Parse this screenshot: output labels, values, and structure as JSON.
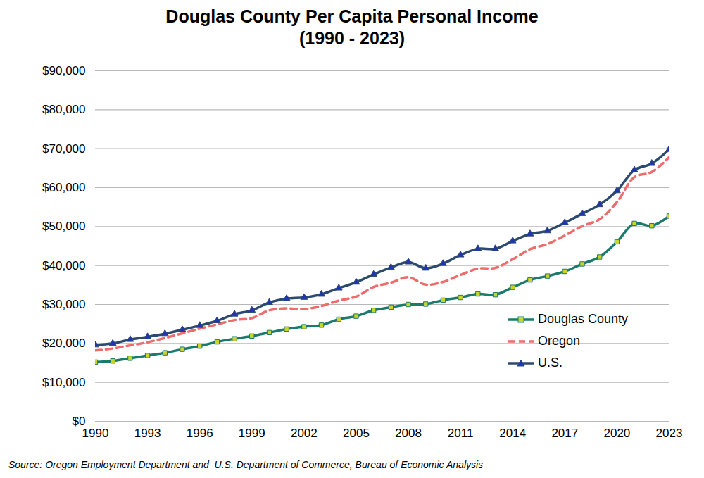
{
  "chart_data": {
    "type": "line",
    "title": "Douglas County Per Capita Personal Income",
    "subtitle": "(1990 - 2023)",
    "source": "Source: Oregon Employment Department and  U.S. Department of Commerce, Bureau of Economic Analysis",
    "x": [
      1990,
      1991,
      1992,
      1993,
      1994,
      1995,
      1996,
      1997,
      1998,
      1999,
      2000,
      2001,
      2002,
      2003,
      2004,
      2005,
      2006,
      2007,
      2008,
      2009,
      2010,
      2011,
      2012,
      2013,
      2014,
      2015,
      2016,
      2017,
      2018,
      2019,
      2020,
      2021,
      2022,
      2023
    ],
    "series": [
      {
        "name": "Douglas County",
        "color": "#1b7a6c",
        "marker": "square",
        "line_style": "solid",
        "values": [
          15200,
          15500,
          16200,
          16900,
          17600,
          18500,
          19300,
          20400,
          21200,
          21900,
          22800,
          23700,
          24300,
          24700,
          26200,
          27000,
          28500,
          29300,
          30000,
          30100,
          31100,
          31800,
          32700,
          32500,
          34400,
          36300,
          37300,
          38500,
          40400,
          42200,
          46100,
          50800,
          50200,
          52700
        ]
      },
      {
        "name": "Oregon",
        "color": "#f06b6b",
        "marker": "none",
        "line_style": "dashed",
        "values": [
          18200,
          18700,
          19500,
          20300,
          21400,
          22600,
          23800,
          24900,
          26000,
          26500,
          28500,
          29000,
          28800,
          29600,
          31000,
          32000,
          34500,
          35600,
          37000,
          35100,
          35800,
          37600,
          39200,
          39400,
          41600,
          44200,
          45500,
          47700,
          50100,
          51900,
          56300,
          62700,
          64000,
          67800
        ]
      },
      {
        "name": "U.S.",
        "color": "#2c4a6e",
        "marker": "triangle",
        "line_style": "solid",
        "values": [
          19600,
          20000,
          21000,
          21700,
          22500,
          23500,
          24600,
          25800,
          27500,
          28500,
          30500,
          31500,
          31800,
          32600,
          34200,
          35700,
          37700,
          39500,
          40900,
          39300,
          40500,
          42700,
          44300,
          44300,
          46300,
          48100,
          48900,
          51000,
          53300,
          55600,
          59200,
          64500,
          66200,
          69800
        ]
      }
    ],
    "xlim": [
      1990,
      2023
    ],
    "xticks": [
      1990,
      1993,
      1996,
      1999,
      2002,
      2005,
      2008,
      2011,
      2014,
      2017,
      2020,
      2023
    ],
    "ylim": [
      0,
      90000
    ],
    "yticks": [
      {
        "value": 0,
        "label": "$0"
      },
      {
        "value": 10000,
        "label": "$10,000"
      },
      {
        "value": 20000,
        "label": "$20,000"
      },
      {
        "value": 30000,
        "label": "$30,000"
      },
      {
        "value": 40000,
        "label": "$40,000"
      },
      {
        "value": 50000,
        "label": "$50,000"
      },
      {
        "value": 60000,
        "label": "$60,000"
      },
      {
        "value": 70000,
        "label": "$70,000"
      },
      {
        "value": 80000,
        "label": "$80,000"
      },
      {
        "value": 90000,
        "label": "$90,000"
      }
    ],
    "grid": true,
    "legend": "bottom-right"
  }
}
